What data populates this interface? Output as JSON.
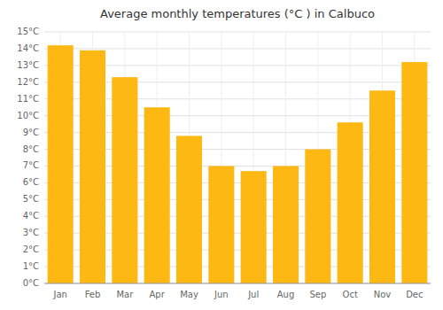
{
  "chart_data": {
    "type": "bar",
    "title": "Average monthly temperatures (°C ) in Calbuco",
    "categories": [
      "Jan",
      "Feb",
      "Mar",
      "Apr",
      "May",
      "Jun",
      "Jul",
      "Aug",
      "Sep",
      "Oct",
      "Nov",
      "Dec"
    ],
    "values": [
      14.2,
      13.9,
      12.3,
      10.5,
      8.8,
      7.0,
      6.7,
      7.0,
      8.0,
      9.6,
      11.5,
      13.2
    ],
    "color": "#FDB813",
    "ylim": [
      0,
      15
    ],
    "yticks": [
      {
        "value": 0,
        "label": "0°C"
      },
      {
        "value": 1,
        "label": "1°C"
      },
      {
        "value": 2,
        "label": "2°C"
      },
      {
        "value": 3,
        "label": "3°C"
      },
      {
        "value": 4,
        "label": "4°C"
      },
      {
        "value": 5,
        "label": "5°C"
      },
      {
        "value": 6,
        "label": "6°C"
      },
      {
        "value": 7,
        "label": "7°C"
      },
      {
        "value": 8,
        "label": "8°C"
      },
      {
        "value": 9,
        "label": "9°C"
      },
      {
        "value": 10,
        "label": "10°C"
      },
      {
        "value": 11,
        "label": "11°C"
      },
      {
        "value": 12,
        "label": "12°C"
      },
      {
        "value": 13,
        "label": "13°C"
      },
      {
        "value": 14,
        "label": "14°C"
      },
      {
        "value": 15,
        "label": "15°C"
      }
    ],
    "grid": true
  }
}
